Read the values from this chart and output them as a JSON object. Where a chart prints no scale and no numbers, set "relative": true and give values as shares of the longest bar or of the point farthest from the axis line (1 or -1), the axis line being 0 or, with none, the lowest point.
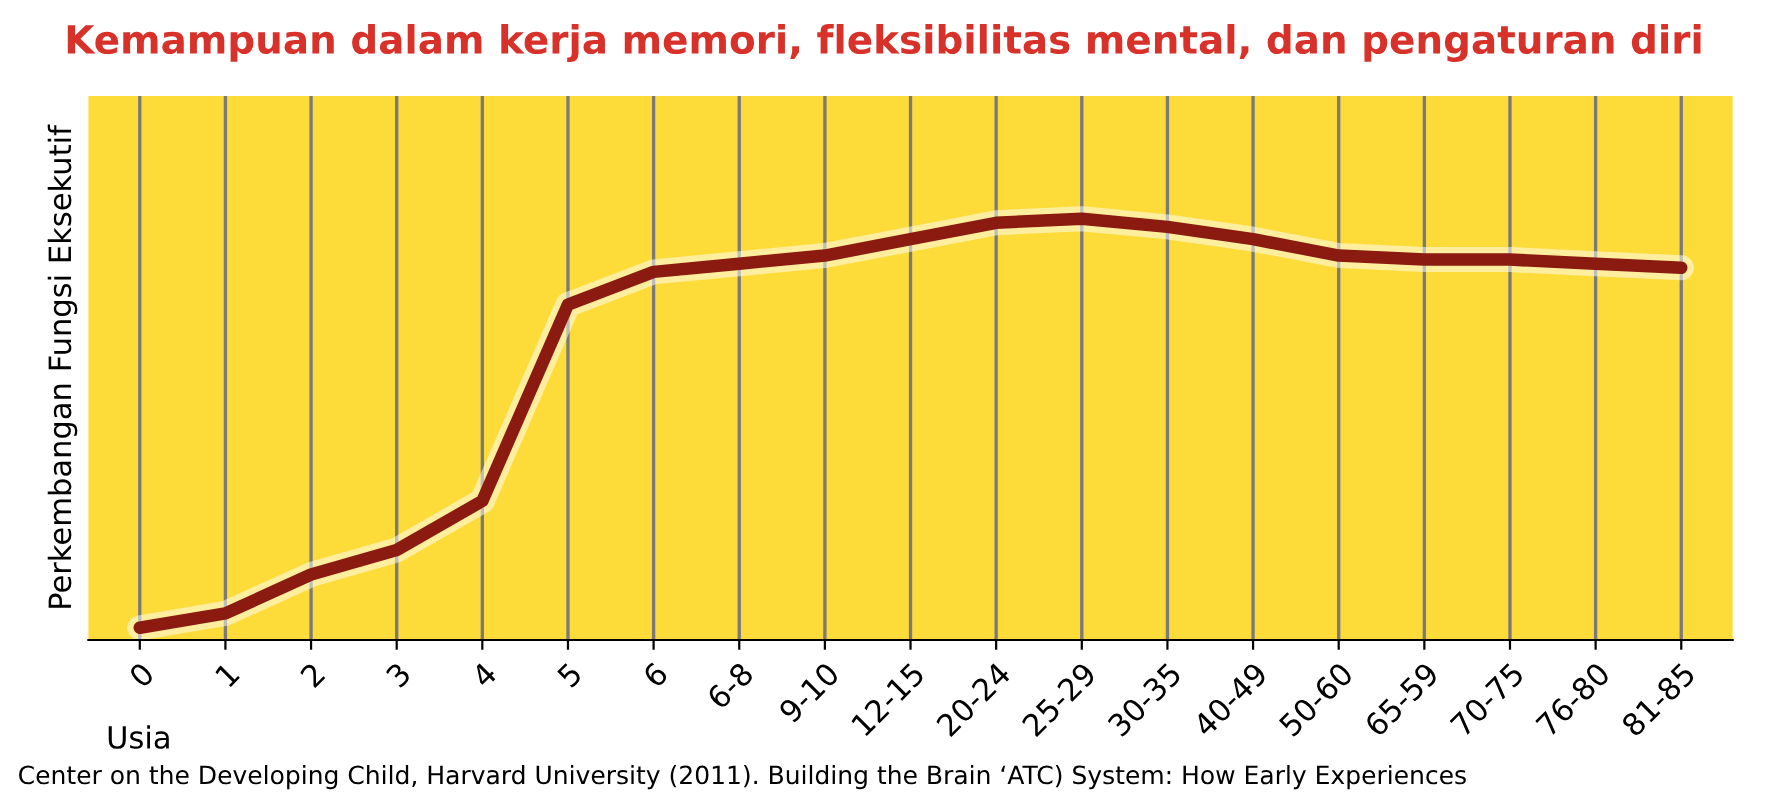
{
  "chart_data": {
    "type": "line",
    "title": "Kemampuan dalam kerja memori, fleksibilitas mental, dan pengaturan diri",
    "ylabel": "Perkembangan Fungsi Eksekutif",
    "xlabel": "Usia",
    "annotations": [
      "Center on the Developing Child, Harvard University (2011). Building the Brain ‘ATC) System: How Early Experiences"
    ],
    "categories": [
      "0",
      "1",
      "2",
      "3",
      "4",
      "5",
      "6",
      "6-8",
      "9-10",
      "12-15",
      "20-24",
      "25-29",
      "30-35",
      "40-49",
      "50-60",
      "65-59",
      "70-75",
      "76-80",
      "81-85"
    ],
    "relative": true,
    "grid": "x",
    "legend": false,
    "marker": "none",
    "line_style": "solid",
    "series": [
      {
        "color": "#8b1a10",
        "values": [
          0,
          0.035,
          0.13,
          0.19,
          0.31,
          0.79,
          0.87,
          0.89,
          0.91,
          0.95,
          0.99,
          1.0,
          0.98,
          0.95,
          0.91,
          0.9,
          0.9,
          0.89,
          0.88
        ]
      }
    ]
  }
}
